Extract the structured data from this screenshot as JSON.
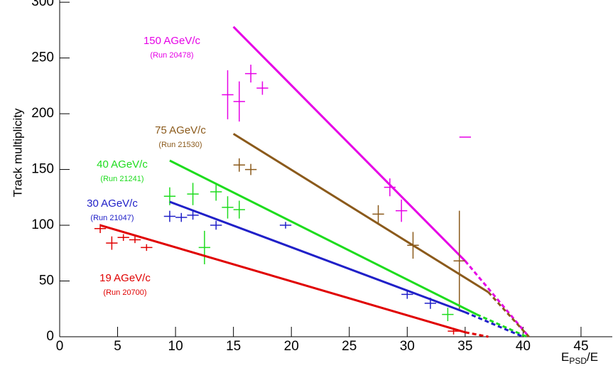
{
  "chart_data": {
    "type": "line",
    "y_label": "Track multiplicity",
    "x_label": [
      "E",
      "PSD",
      "/E"
    ],
    "xlim": [
      0,
      47.7
    ],
    "ylim": [
      0,
      302
    ],
    "xticks": [
      0,
      5,
      10,
      15,
      20,
      25,
      30,
      35,
      40,
      45
    ],
    "yticks": [
      0,
      50,
      100,
      150,
      200,
      250,
      300
    ],
    "series": [
      {
        "name": "150 AGeV/c",
        "run": "(Run 20478)",
        "color": "#e600e6",
        "line": {
          "x": [
            15,
            35
          ],
          "values": [
            278,
            68
          ]
        },
        "extrapolation": {
          "x": [
            35,
            40.5
          ],
          "values": [
            68,
            0
          ]
        },
        "x": [
          14.5,
          15.5,
          16.5,
          17.5,
          28.5,
          29.5,
          35
        ],
        "values": [
          217,
          211,
          236,
          223,
          134,
          113,
          179
        ],
        "y_errors": [
          22,
          18,
          8,
          6,
          8,
          10,
          0
        ]
      },
      {
        "name": "75 AGeV/c",
        "run": "(Run 21530)",
        "color": "#8b5a1b",
        "line": {
          "x": [
            15,
            37
          ],
          "values": [
            182,
            40
          ]
        },
        "extrapolation": {
          "x": [
            37,
            40.5
          ],
          "values": [
            40,
            0
          ]
        },
        "x": [
          15.5,
          16.5,
          27.5,
          30.5,
          34.5
        ],
        "values": [
          154,
          150,
          110,
          82,
          68
        ],
        "y_errors": [
          6,
          5,
          8,
          12,
          45
        ]
      },
      {
        "name": "40 AGeV/c",
        "run": "(Run 21241)",
        "color": "#1edc1e",
        "line": {
          "x": [
            9.5,
            36
          ],
          "values": [
            158,
            20
          ]
        },
        "extrapolation": {
          "x": [
            36,
            40.3
          ],
          "values": [
            20,
            0
          ]
        },
        "x": [
          9.5,
          11.5,
          12.5,
          13.5,
          14.5,
          15.5,
          33.5
        ],
        "values": [
          126,
          128,
          80,
          130,
          116,
          114,
          20
        ],
        "y_errors": [
          8,
          10,
          15,
          8,
          10,
          8,
          6
        ]
      },
      {
        "name": "30 AGeV/c",
        "run": "(Run 21047)",
        "color": "#2020c8",
        "line": {
          "x": [
            9.5,
            35
          ],
          "values": [
            121,
            22
          ]
        },
        "extrapolation": {
          "x": [
            35,
            40
          ],
          "values": [
            22,
            0
          ]
        },
        "x": [
          9.5,
          10.5,
          11.5,
          13.5,
          19.5,
          30,
          32
        ],
        "values": [
          108,
          107,
          109,
          100,
          100,
          38,
          30
        ],
        "y_errors": [
          5,
          4,
          4,
          4,
          3,
          4,
          5
        ]
      },
      {
        "name": "19 AGeV/c",
        "run": "(Run 20700)",
        "color": "#e00000",
        "line": {
          "x": [
            3.5,
            35
          ],
          "values": [
            100,
            4
          ]
        },
        "extrapolation": {
          "x": [
            35,
            37
          ],
          "values": [
            4,
            0
          ]
        },
        "x": [
          3.5,
          4.5,
          5.5,
          6.5,
          7.5,
          34
        ],
        "values": [
          97,
          84,
          89,
          87,
          80,
          5
        ],
        "y_errors": [
          4,
          6,
          3,
          3,
          3,
          3
        ]
      }
    ]
  }
}
